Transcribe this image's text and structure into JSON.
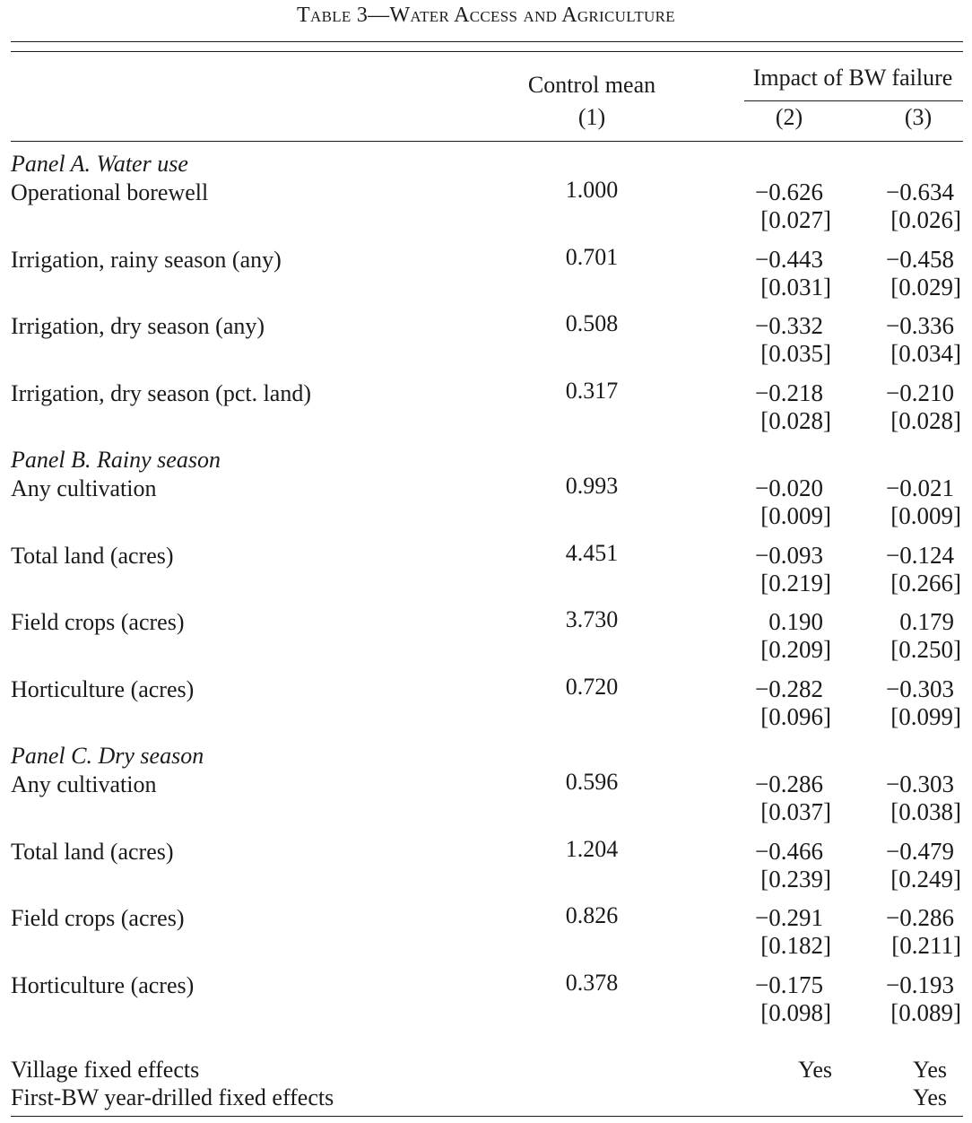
{
  "title": "Table 3—Water Access and Agriculture",
  "headers": {
    "col1_label": "Control mean",
    "col1_num": "(1)",
    "impact_label": "Impact of BW failure",
    "col2_num": "(2)",
    "col3_num": "(3)"
  },
  "panels": [
    {
      "title": "Panel A. Water use",
      "rows": [
        {
          "label": "Operational borewell",
          "mean": "1.000",
          "c2": "−0.626",
          "c2_se": "[0.027]",
          "c3": "−0.634",
          "c3_se": "[0.026]"
        },
        {
          "label": "Irrigation, rainy season (any)",
          "mean": "0.701",
          "c2": "−0.443",
          "c2_se": "[0.031]",
          "c3": "−0.458",
          "c3_se": "[0.029]"
        },
        {
          "label": "Irrigation, dry season (any)",
          "mean": "0.508",
          "c2": "−0.332",
          "c2_se": "[0.035]",
          "c3": "−0.336",
          "c3_se": "[0.034]"
        },
        {
          "label": "Irrigation, dry season (pct. land)",
          "mean": "0.317",
          "c2": "−0.218",
          "c2_se": "[0.028]",
          "c3": "−0.210",
          "c3_se": "[0.028]"
        }
      ]
    },
    {
      "title": "Panel B. Rainy season",
      "rows": [
        {
          "label": "Any cultivation",
          "mean": "0.993",
          "c2": "−0.020",
          "c2_se": "[0.009]",
          "c3": "−0.021",
          "c3_se": "[0.009]"
        },
        {
          "label": "Total land (acres)",
          "mean": "4.451",
          "c2": "−0.093",
          "c2_se": "[0.219]",
          "c3": "−0.124",
          "c3_se": "[0.266]"
        },
        {
          "label": "Field crops (acres)",
          "mean": "3.730",
          "c2": "0.190",
          "c2_se": "[0.209]",
          "c3": "0.179",
          "c3_se": "[0.250]"
        },
        {
          "label": "Horticulture (acres)",
          "mean": "0.720",
          "c2": "−0.282",
          "c2_se": "[0.096]",
          "c3": "−0.303",
          "c3_se": "[0.099]"
        }
      ]
    },
    {
      "title": "Panel C. Dry season",
      "rows": [
        {
          "label": "Any cultivation",
          "mean": "0.596",
          "c2": "−0.286",
          "c2_se": "[0.037]",
          "c3": "−0.303",
          "c3_se": "[0.038]"
        },
        {
          "label": "Total land (acres)",
          "mean": "1.204",
          "c2": "−0.466",
          "c2_se": "[0.239]",
          "c3": "−0.479",
          "c3_se": "[0.249]"
        },
        {
          "label": "Field crops (acres)",
          "mean": "0.826",
          "c2": "−0.291",
          "c2_se": "[0.182]",
          "c3": "−0.286",
          "c3_se": "[0.211]"
        },
        {
          "label": "Horticulture (acres)",
          "mean": "0.378",
          "c2": "−0.175",
          "c2_se": "[0.098]",
          "c3": "−0.193",
          "c3_se": "[0.089]"
        }
      ]
    }
  ],
  "footer": [
    {
      "label": "Village fixed effects",
      "c2": "Yes",
      "c3": "Yes"
    },
    {
      "label": "First-BW year-drilled fixed effects",
      "c2": "",
      "c3": "Yes"
    }
  ]
}
